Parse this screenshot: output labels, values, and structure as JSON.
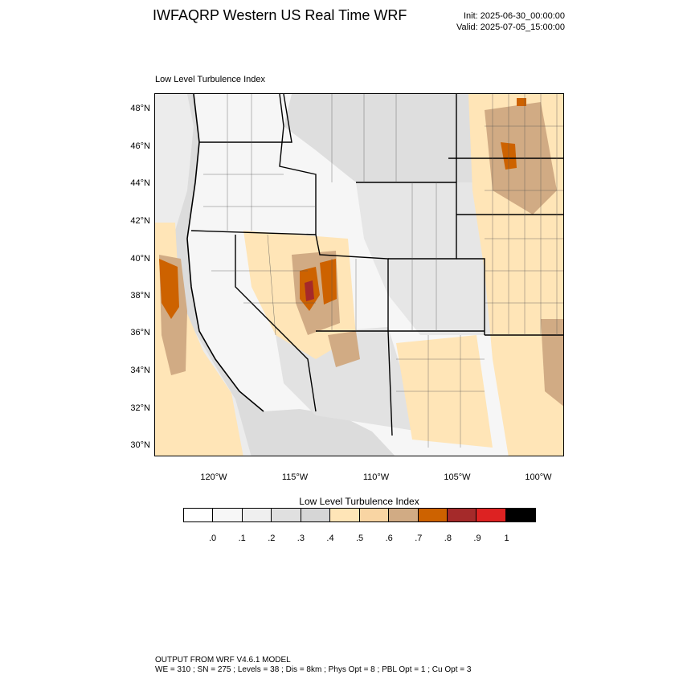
{
  "header": {
    "title": "IWFAQRP Western US Real Time WRF",
    "init": "Init: 2025-06-30_00:00:00",
    "valid": "Valid: 2025-07-05_15:00:00"
  },
  "field": {
    "label": "Low Level Turbulence Index"
  },
  "map": {
    "lat_labels": [
      "48°N",
      "46°N",
      "44°N",
      "42°N",
      "40°N",
      "38°N",
      "36°N",
      "34°N",
      "32°N",
      "30°N"
    ],
    "lon_labels": [
      "120°W",
      "115°W",
      "110°W",
      "105°W",
      "100°W"
    ]
  },
  "colorbar": {
    "title": "Low Level Turbulence Index",
    "colors": [
      "#ffffff",
      "#f7f7f7",
      "#efefef",
      "#e0e0e0",
      "#d6d6d6",
      "#ffe5b7",
      "#f9d5a3",
      "#d1ab84",
      "#cd6200",
      "#a52a2a",
      "#dd2222",
      "#000000"
    ],
    "labels": [
      ".0",
      ".1",
      ".2",
      ".3",
      ".4",
      ".5",
      ".6",
      ".7",
      ".8",
      ".9",
      "1"
    ]
  },
  "footer": {
    "line1": "OUTPUT FROM WRF V4.6.1 MODEL",
    "line2": "WE = 310 ; SN = 275 ; Levels = 38 ; Dis = 8km ; Phys Opt = 8 ; PBL Opt = 1 ; Cu Opt = 3"
  }
}
